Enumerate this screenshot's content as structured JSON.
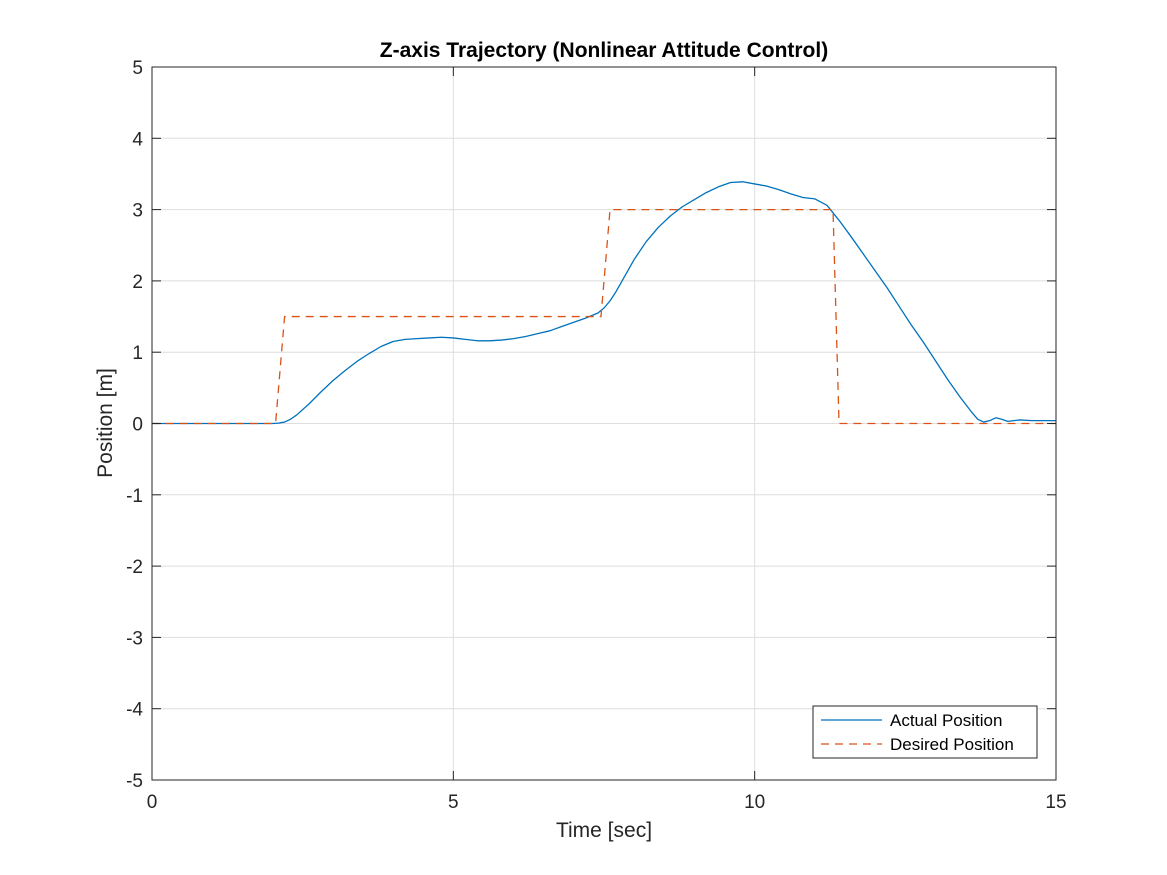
{
  "chart_data": {
    "type": "line",
    "title": "Z-axis Trajectory (Nonlinear Attitude Control)",
    "xlabel": "Time [sec]",
    "ylabel": "Position [m]",
    "xlim": [
      0,
      15
    ],
    "ylim": [
      -5,
      5
    ],
    "xticks": [
      0,
      5,
      10,
      15
    ],
    "yticks": [
      -5,
      -4,
      -3,
      -2,
      -1,
      0,
      1,
      2,
      3,
      4,
      5
    ],
    "grid": true,
    "legend_position": "bottom-right",
    "series": [
      {
        "name": "Actual Position",
        "color": "#0072BD",
        "style": "solid",
        "x": [
          0,
          2.0,
          2.1,
          2.2,
          2.3,
          2.4,
          2.6,
          2.8,
          3.0,
          3.2,
          3.4,
          3.6,
          3.8,
          4.0,
          4.2,
          4.4,
          4.6,
          4.8,
          5.0,
          5.2,
          5.4,
          5.6,
          5.8,
          6.0,
          6.2,
          6.4,
          6.6,
          6.8,
          7.0,
          7.2,
          7.4,
          7.5,
          7.6,
          7.7,
          7.8,
          8.0,
          8.2,
          8.4,
          8.6,
          8.8,
          9.0,
          9.2,
          9.4,
          9.6,
          9.8,
          10.0,
          10.2,
          10.4,
          10.6,
          10.8,
          11.0,
          11.2,
          11.4,
          11.6,
          11.8,
          12.0,
          12.2,
          12.4,
          12.6,
          12.8,
          13.0,
          13.2,
          13.4,
          13.6,
          13.7,
          13.8,
          13.9,
          14.0,
          14.1,
          14.2,
          14.3,
          14.4,
          14.6,
          14.8,
          15.0
        ],
        "y": [
          0,
          0,
          0.005,
          0.02,
          0.06,
          0.12,
          0.27,
          0.44,
          0.6,
          0.74,
          0.87,
          0.98,
          1.08,
          1.15,
          1.18,
          1.19,
          1.2,
          1.21,
          1.2,
          1.18,
          1.16,
          1.16,
          1.17,
          1.19,
          1.22,
          1.26,
          1.3,
          1.36,
          1.42,
          1.48,
          1.55,
          1.62,
          1.72,
          1.85,
          2.0,
          2.3,
          2.55,
          2.75,
          2.91,
          3.04,
          3.14,
          3.24,
          3.32,
          3.38,
          3.39,
          3.36,
          3.33,
          3.28,
          3.22,
          3.17,
          3.15,
          3.06,
          2.85,
          2.62,
          2.38,
          2.14,
          1.9,
          1.64,
          1.38,
          1.14,
          0.88,
          0.62,
          0.38,
          0.16,
          0.06,
          0.02,
          0.04,
          0.08,
          0.06,
          0.03,
          0.04,
          0.05,
          0.04,
          0.04,
          0.04
        ]
      },
      {
        "name": "Desired Position",
        "color": "#D95319",
        "style": "dashed",
        "x": [
          0,
          2.05,
          2.2,
          7.45,
          7.6,
          11.3,
          11.4,
          15
        ],
        "y": [
          0,
          0,
          1.5,
          1.5,
          3,
          3,
          0,
          0
        ]
      }
    ]
  }
}
